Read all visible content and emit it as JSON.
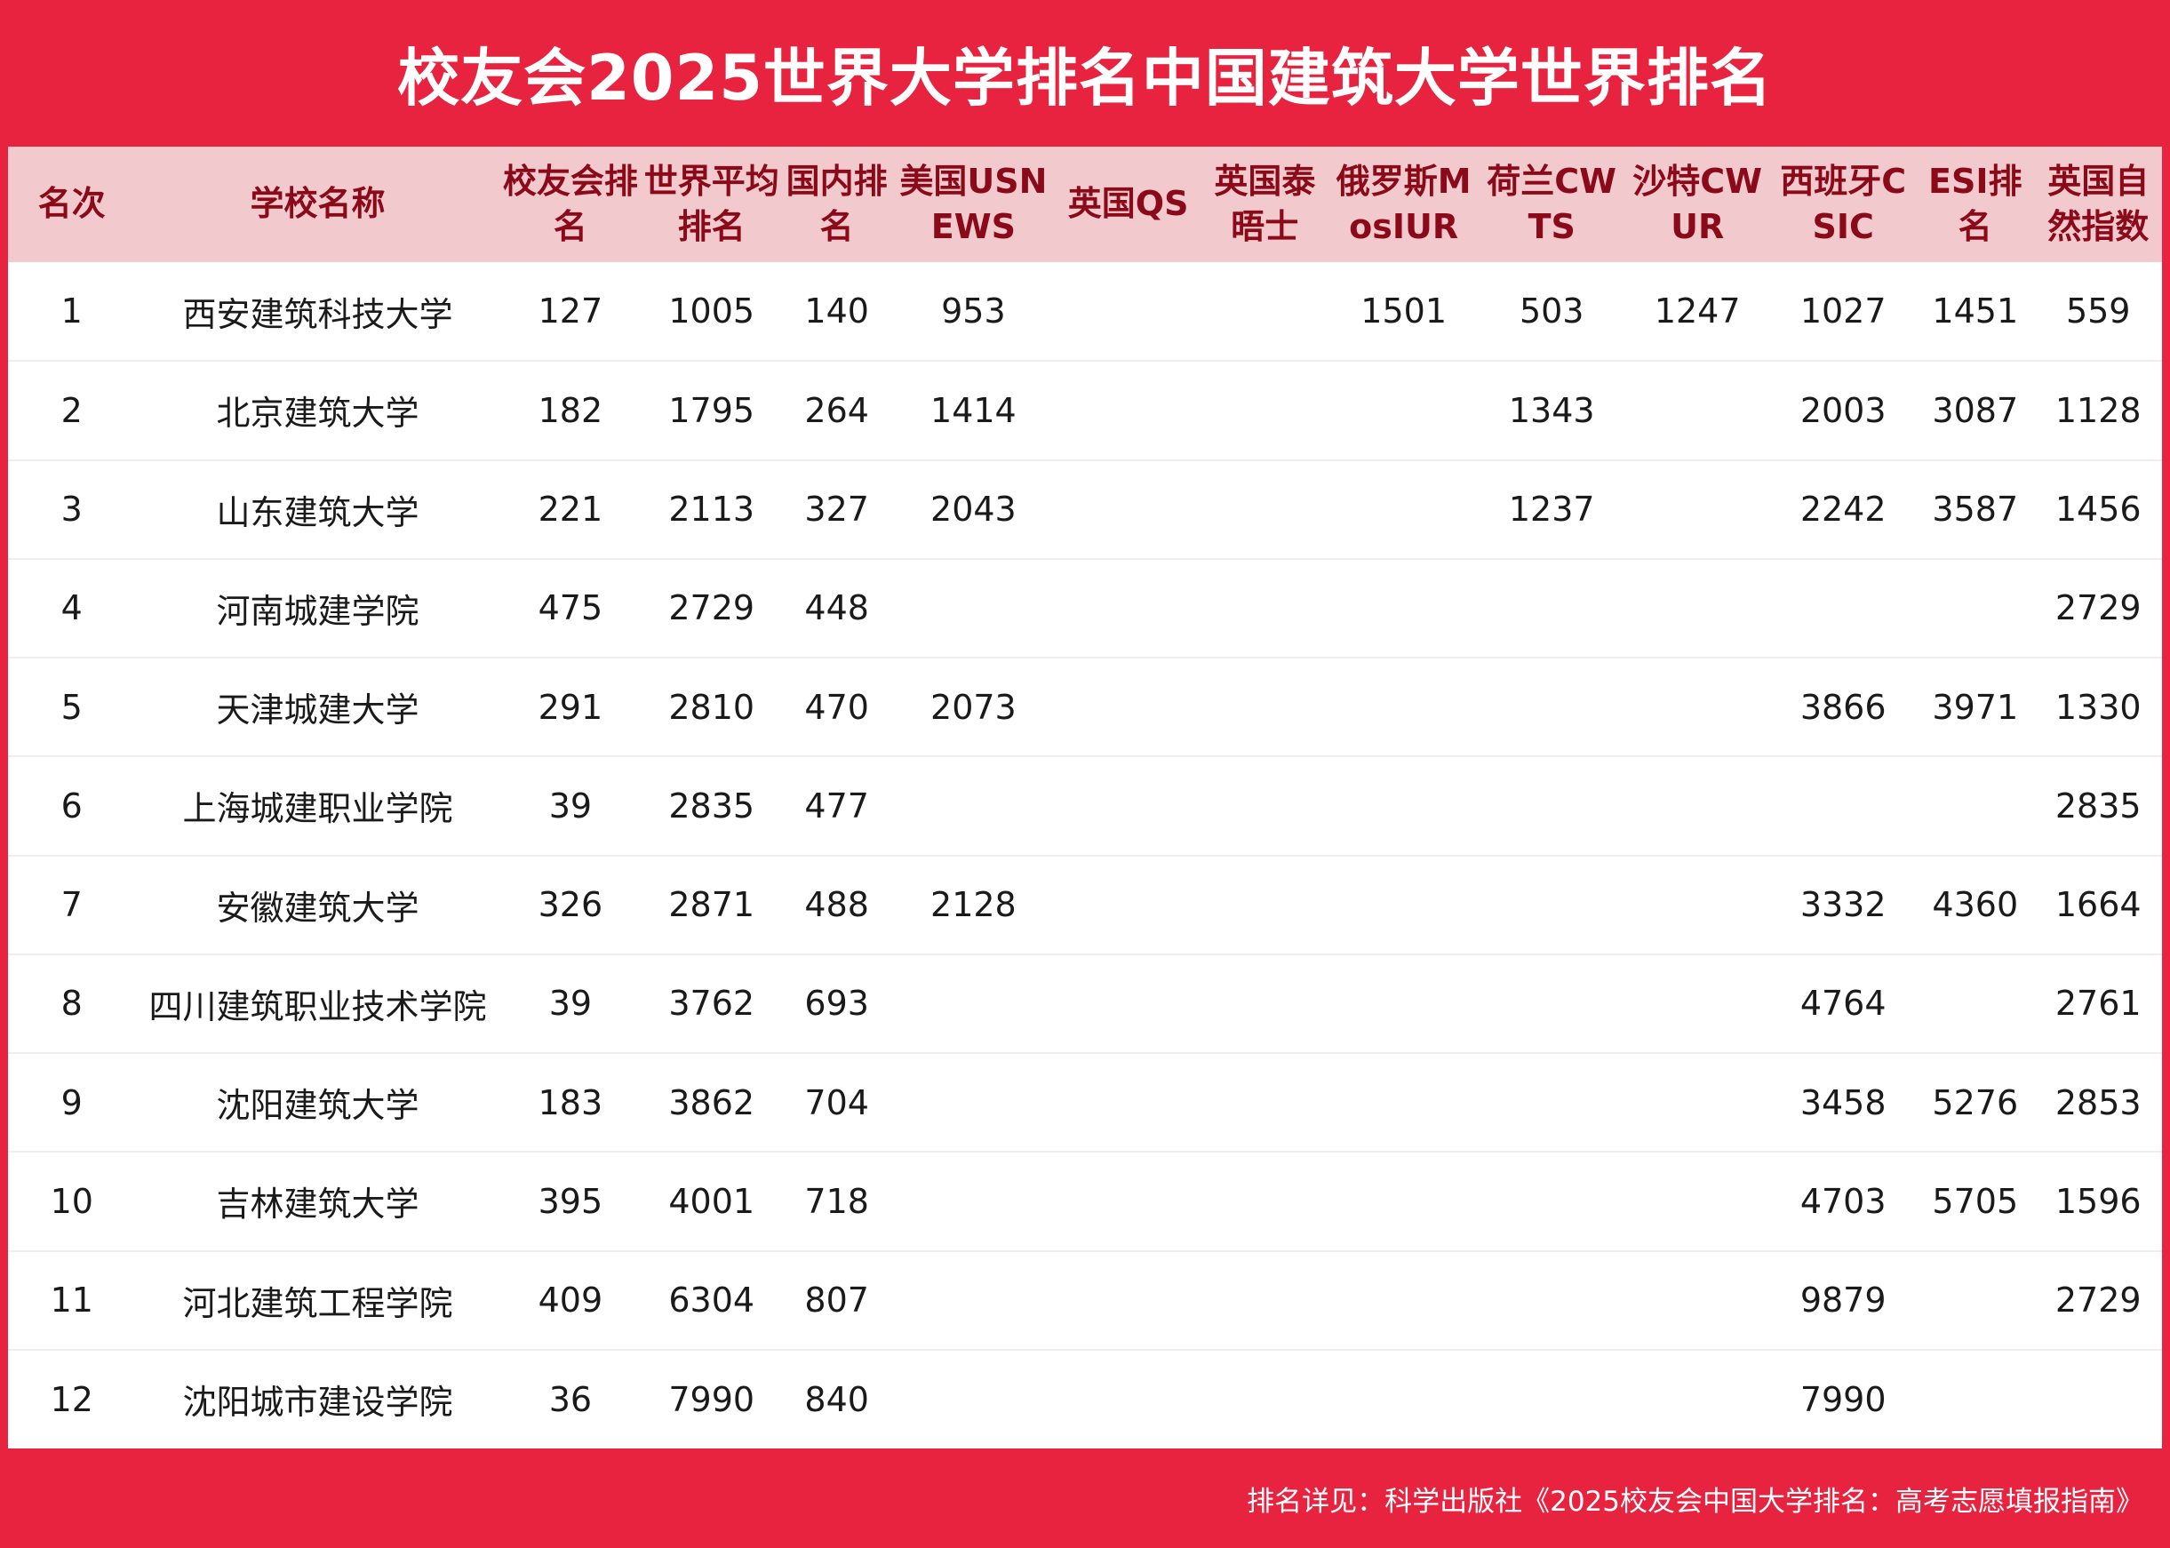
{
  "title": "校友会2025世界大学排名中国建筑大学世界排名",
  "columns": [
    "名次",
    "学校名称",
    "校友会排名",
    "世界平均排名",
    "国内排名",
    "美国USNEWS",
    "英国QS",
    "英国泰晤士",
    "俄罗斯MosIUR",
    "荷兰CWTS",
    "沙特CWUR",
    "西班牙CSIC",
    "ESI排名",
    "英国自然指数"
  ],
  "rows": [
    [
      "1",
      "西安建筑科技大学",
      "127",
      "1005",
      "140",
      "953",
      "",
      "",
      "1501",
      "503",
      "1247",
      "1027",
      "1451",
      "559"
    ],
    [
      "2",
      "北京建筑大学",
      "182",
      "1795",
      "264",
      "1414",
      "",
      "",
      "",
      "1343",
      "",
      "2003",
      "3087",
      "1128"
    ],
    [
      "3",
      "山东建筑大学",
      "221",
      "2113",
      "327",
      "2043",
      "",
      "",
      "",
      "1237",
      "",
      "2242",
      "3587",
      "1456"
    ],
    [
      "4",
      "河南城建学院",
      "475",
      "2729",
      "448",
      "",
      "",
      "",
      "",
      "",
      "",
      "",
      "",
      "2729"
    ],
    [
      "5",
      "天津城建大学",
      "291",
      "2810",
      "470",
      "2073",
      "",
      "",
      "",
      "",
      "",
      "3866",
      "3971",
      "1330"
    ],
    [
      "6",
      "上海城建职业学院",
      "39",
      "2835",
      "477",
      "",
      "",
      "",
      "",
      "",
      "",
      "",
      "",
      "2835"
    ],
    [
      "7",
      "安徽建筑大学",
      "326",
      "2871",
      "488",
      "2128",
      "",
      "",
      "",
      "",
      "",
      "3332",
      "4360",
      "1664"
    ],
    [
      "8",
      "四川建筑职业技术学院",
      "39",
      "3762",
      "693",
      "",
      "",
      "",
      "",
      "",
      "",
      "4764",
      "",
      "2761"
    ],
    [
      "9",
      "沈阳建筑大学",
      "183",
      "3862",
      "704",
      "",
      "",
      "",
      "",
      "",
      "",
      "3458",
      "5276",
      "2853"
    ],
    [
      "10",
      "吉林建筑大学",
      "395",
      "4001",
      "718",
      "",
      "",
      "",
      "",
      "",
      "",
      "4703",
      "5705",
      "1596"
    ],
    [
      "11",
      "河北建筑工程学院",
      "409",
      "6304",
      "807",
      "",
      "",
      "",
      "",
      "",
      "",
      "9879",
      "",
      "2729"
    ],
    [
      "12",
      "沈阳城市建设学院",
      "36",
      "7990",
      "840",
      "",
      "",
      "",
      "",
      "",
      "",
      "7990",
      "",
      ""
    ]
  ],
  "footer": "排名详见：科学出版社《2025校友会中国大学排名：高考志愿填报指南》",
  "colors": {
    "background": "#e8233f",
    "header_bg": "#f2c9cd",
    "header_text": "#8b0a1a"
  }
}
